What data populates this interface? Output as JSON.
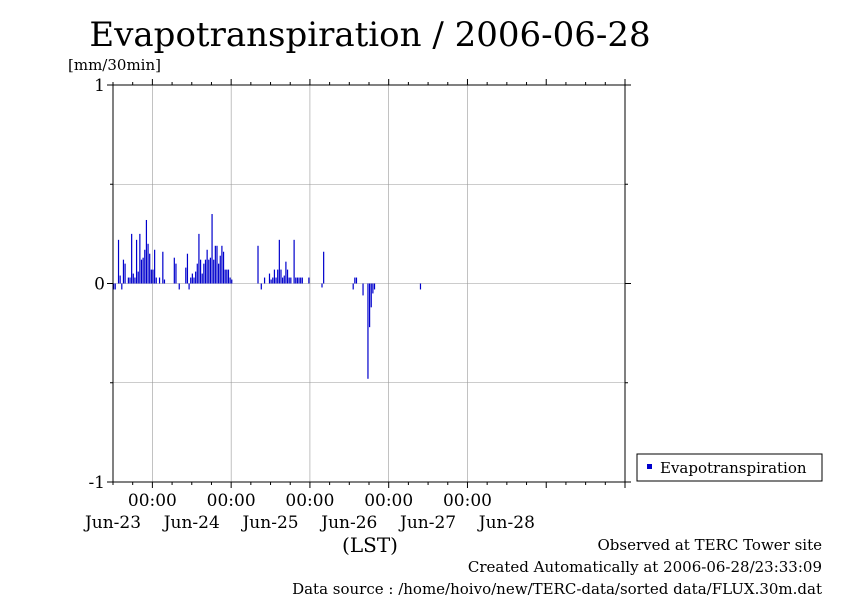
{
  "chart_data": {
    "type": "bar",
    "title": "Evapotranspiration / 2006-06-28",
    "ylabel": "[mm/30min]",
    "xlabel": "(LST)",
    "ylim": [
      -1,
      1
    ],
    "y_ticks": [
      "1",
      "0",
      "-1"
    ],
    "x_time_labels": [
      "00:00",
      "00:00",
      "00:00",
      "00:00",
      "00:00"
    ],
    "x_date_labels": [
      "Jun-23",
      "Jun-24",
      "Jun-25",
      "Jun-26",
      "Jun-27",
      "Jun-28"
    ],
    "x_start": "2006-06-22 12:00",
    "x_end": "2006-06-28 24:00",
    "interval": "30min",
    "grid": true,
    "legend_position": "right",
    "series": [
      {
        "name": "Evapotranspiration",
        "color": "#0000cc",
        "values": [
          -0.03,
          -0.03,
          0.0,
          0.22,
          0.04,
          -0.03,
          0.12,
          0.1,
          0.0,
          0.03,
          0.03,
          0.25,
          0.05,
          0.03,
          0.22,
          0.06,
          0.25,
          0.12,
          0.13,
          0.17,
          0.32,
          0.2,
          0.15,
          0.07,
          0.07,
          0.17,
          0.03,
          0.0,
          0.03,
          0.0,
          0.16,
          0.02,
          0.0,
          0.0,
          0.0,
          0.0,
          0.0,
          0.13,
          0.1,
          0.0,
          -0.03,
          0.0,
          0.0,
          0.0,
          0.08,
          0.15,
          -0.03,
          0.03,
          0.05,
          0.03,
          0.06,
          0.1,
          0.25,
          0.12,
          0.05,
          0.1,
          0.12,
          0.17,
          0.12,
          0.13,
          0.35,
          0.12,
          0.19,
          0.19,
          0.1,
          0.14,
          0.19,
          0.16,
          0.07,
          0.07,
          0.07,
          0.03,
          0.02,
          0.0,
          0.0,
          0.0,
          0.0,
          0.0,
          0.0,
          0.0,
          0.0,
          0.0,
          0.0,
          0.0,
          0.0,
          0.0,
          0.0,
          0.0,
          0.19,
          0.0,
          -0.03,
          0.0,
          0.03,
          0.0,
          0.0,
          0.05,
          0.02,
          0.03,
          0.07,
          0.03,
          0.07,
          0.22,
          0.07,
          0.03,
          0.04,
          0.11,
          0.07,
          0.03,
          0.03,
          0.0,
          0.22,
          0.03,
          0.03,
          0.03,
          0.03,
          0.03,
          0.0,
          0.0,
          0.0,
          0.03,
          0.0,
          0.0,
          0.0,
          0.0,
          0.0,
          0.0,
          0.0,
          -0.02,
          0.16,
          0.0,
          0.0,
          0.0,
          0.0,
          0.0,
          0.0,
          0.0,
          0.0,
          0.0,
          0.0,
          0.0,
          0.0,
          0.0,
          0.0,
          0.0,
          0.0,
          0.0,
          -0.03,
          0.03,
          0.03,
          0.0,
          0.0,
          0.0,
          -0.06,
          0.0,
          0.0,
          -0.48,
          -0.22,
          -0.12,
          -0.05,
          -0.03,
          0.0,
          0.0,
          0.0,
          0.0,
          0.0,
          0.0,
          0.0,
          0.0,
          0.0,
          0.0,
          0.0,
          0.0,
          0.0,
          0.0,
          0.0,
          0.0,
          0.0,
          0.0,
          0.0,
          0.0,
          0.0,
          0.0,
          0.0,
          0.0,
          0.0,
          0.0,
          0.0,
          -0.03,
          0.0,
          0.0,
          0.0,
          0.0,
          0.0,
          0.0,
          0.0,
          0.0,
          0.0,
          0.0,
          0.0,
          0.0,
          0.0,
          0.0,
          0.0,
          0.0,
          0.0,
          0.0,
          0.0,
          0.0,
          0.0,
          0.0,
          0.0,
          0.0,
          0.0,
          0.0,
          0.0,
          0.0,
          0.0,
          0.0,
          0.0,
          0.0,
          0.0,
          0.0,
          0.0,
          0.0,
          0.0,
          0.0,
          0.0,
          0.0,
          0.0
        ]
      }
    ]
  },
  "legend": {
    "label": "Evapotranspiration"
  },
  "footer": {
    "line1": "Observed at TERC Tower site",
    "line2": "Created Automatically at 2006-06-28/23:33:09",
    "line3": "Data source : /home/hoivo/new/TERC-data/sorted data/FLUX.30m.dat"
  }
}
